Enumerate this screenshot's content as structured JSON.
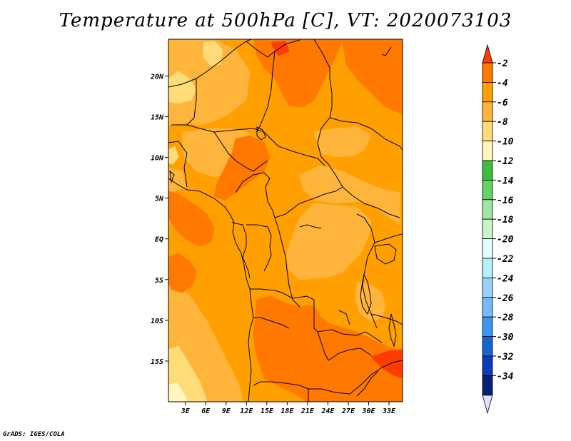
{
  "title": "Temperature at 500hPa [C], VT: 2020073103",
  "credit": "GrADS: IGES/COLA",
  "map": {
    "projection": "lat-lon",
    "lon_range": [
      0.5,
      35
    ],
    "lat_range": [
      -20,
      24.5
    ],
    "lat_ticks": [
      {
        "value": 20,
        "label": "20N"
      },
      {
        "value": 15,
        "label": "15N"
      },
      {
        "value": 10,
        "label": "10N"
      },
      {
        "value": 5,
        "label": "5N"
      },
      {
        "value": 0,
        "label": "EQ"
      },
      {
        "value": -5,
        "label": "5S"
      },
      {
        "value": -10,
        "label": "10S"
      },
      {
        "value": -15,
        "label": "15S"
      }
    ],
    "lon_ticks": [
      {
        "value": 3,
        "label": "3E"
      },
      {
        "value": 6,
        "label": "6E"
      },
      {
        "value": 9,
        "label": "9E"
      },
      {
        "value": 12,
        "label": "12E"
      },
      {
        "value": 15,
        "label": "15E"
      },
      {
        "value": 18,
        "label": "18E"
      },
      {
        "value": 21,
        "label": "21E"
      },
      {
        "value": 24,
        "label": "24E"
      },
      {
        "value": 27,
        "label": "27E"
      },
      {
        "value": 30,
        "label": "30E"
      },
      {
        "value": 33,
        "label": "33E"
      }
    ],
    "dominant_field_range_c": [
      -9,
      -2
    ]
  },
  "colorbar": {
    "labels": [
      "-2",
      "-4",
      "-6",
      "-8",
      "-10",
      "-12",
      "-14",
      "-16",
      "-18",
      "-20",
      "-22",
      "-24",
      "-26",
      "-28",
      "-30",
      "-32",
      "-34"
    ],
    "colors": [
      "#ff3c00",
      "#ff7800",
      "#ffa000",
      "#ffb43c",
      "#ffdc78",
      "#fff5be",
      "#3cbe3c",
      "#64d264",
      "#a0e6a0",
      "#c8f5c8",
      "#e6ffff",
      "#b4f0fa",
      "#96d2fa",
      "#78b9fa",
      "#3c96f0",
      "#1464d2",
      "#0a3cbe",
      "#0a1e78",
      "#e1e1ff"
    ]
  },
  "field_colors": {
    "c_2_4": "#ff7800",
    "c_4_6": "#ffa000",
    "c_6_8": "#ffb43c",
    "c_8_10": "#ffdc78",
    "c_above_2": "#ff3c00",
    "c_10_12": "#fff5be"
  }
}
